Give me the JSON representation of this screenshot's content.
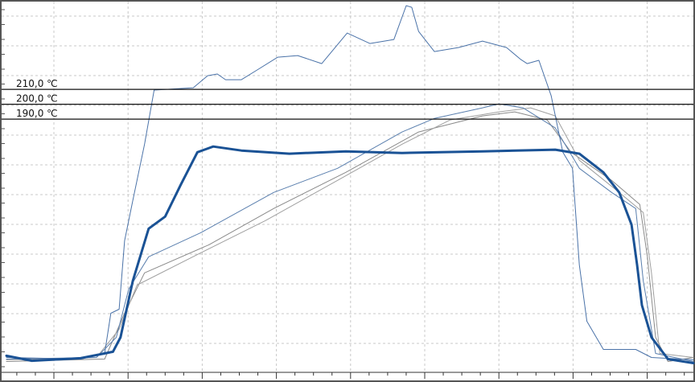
{
  "chart_data": {
    "type": "line",
    "xlim": [
      0,
      100
    ],
    "ylim": [
      20,
      270
    ],
    "grid": true,
    "reference_lines": [
      {
        "value": 210,
        "label": "210,0 ℃"
      },
      {
        "value": 200,
        "label": "200,0 ℃"
      },
      {
        "value": 190,
        "label": "190,0 ℃"
      }
    ],
    "series": [
      {
        "color": "#8a8a8a",
        "width": 1,
        "x": [
          0,
          14.3,
          17.2,
          20.1,
          29.5,
          38.9,
          49.4,
          60.0,
          69.3,
          74.0,
          78.7,
          82.2,
          88.1,
          92.2,
          93.3,
          94.5,
          96.3,
          100
        ],
        "values": [
          27.3,
          28.9,
          59.7,
          86.8,
          105.7,
          130.0,
          154.3,
          181.4,
          192.2,
          194.9,
          189.5,
          167.8,
          148.9,
          132.7,
          97.6,
          43.5,
          27.3,
          30.0
        ]
      },
      {
        "color": "#a0a0a0",
        "width": 1,
        "x": [
          0,
          13.1,
          16.4,
          19.0,
          28.3,
          37.7,
          48.2,
          57.6,
          64.6,
          71.7,
          76.3,
          79.9,
          83.4,
          89.2,
          92.7,
          93.9,
          95.1,
          100
        ],
        "values": [
          28.4,
          30.0,
          48.9,
          78.6,
          100.3,
          121.9,
          148.9,
          173.2,
          189.5,
          194.9,
          197.6,
          192.2,
          162.4,
          140.8,
          127.3,
          86.8,
          32.7,
          30.0
        ]
      },
      {
        "color": "#5a7fae",
        "width": 1,
        "x": [
          0,
          13.1,
          16.0,
          17.8,
          20.7,
          28.3,
          38.9,
          48.2,
          57.6,
          62.3,
          69.3,
          71.7,
          75.2,
          79.9,
          83.4,
          88.1,
          91.6,
          92.7,
          94.5,
          100
        ],
        "values": [
          28.9,
          30.0,
          43.5,
          75.9,
          97.6,
          113.8,
          140.8,
          157.0,
          181.4,
          190.5,
          197.6,
          200.3,
          197.6,
          184.1,
          157.0,
          140.8,
          130.0,
          81.4,
          32.7,
          27.3
        ]
      },
      {
        "color": "#4a72a8",
        "width": 1,
        "x": [
          0,
          10.8,
          14.3,
          15.2,
          16.4,
          17.2,
          18.4,
          20.1,
          21.5,
          27.2,
          29.3,
          30.7,
          31.9,
          34.2,
          36.5,
          39.5,
          42.4,
          45.9,
          49.6,
          52.9,
          56.4,
          58.2,
          59.0,
          60.0,
          62.3,
          65.8,
          69.3,
          72.8,
          74.9,
          75.8,
          77.5,
          79.3,
          81.0,
          82.4,
          83.4,
          84.5,
          86.9,
          91.6,
          93.9,
          100
        ],
        "values": [
          30.0,
          28.9,
          32.7,
          59.7,
          62.4,
          108.4,
          135.4,
          173.2,
          209.5,
          211.1,
          219.2,
          220.3,
          216.5,
          216.5,
          223.0,
          231.6,
          232.7,
          227.3,
          247.8,
          240.8,
          243.5,
          266.2,
          265.1,
          248.9,
          235.4,
          238.1,
          242.4,
          238.1,
          230.0,
          227.3,
          229.5,
          205.7,
          167.8,
          157.0,
          92.2,
          54.3,
          35.4,
          35.4,
          30.0,
          28.4
        ]
      },
      {
        "color": "#1a5295",
        "width": 3,
        "x": [
          0,
          3.7,
          10.8,
          15.5,
          16.6,
          18.4,
          20.7,
          23.1,
          25.4,
          27.8,
          30.1,
          34.2,
          41.2,
          49.4,
          57.6,
          69.3,
          79.9,
          83.4,
          86.9,
          89.2,
          91.0,
          91.8,
          92.5,
          93.9,
          96.3,
          100
        ],
        "values": [
          31.1,
          27.8,
          29.5,
          33.8,
          43.5,
          81.4,
          116.5,
          124.6,
          146.2,
          167.8,
          171.6,
          168.9,
          166.8,
          168.4,
          167.3,
          168.4,
          169.5,
          166.8,
          154.3,
          140.8,
          119.2,
          92.2,
          65.1,
          43.5,
          28.9,
          26.2
        ]
      }
    ]
  }
}
